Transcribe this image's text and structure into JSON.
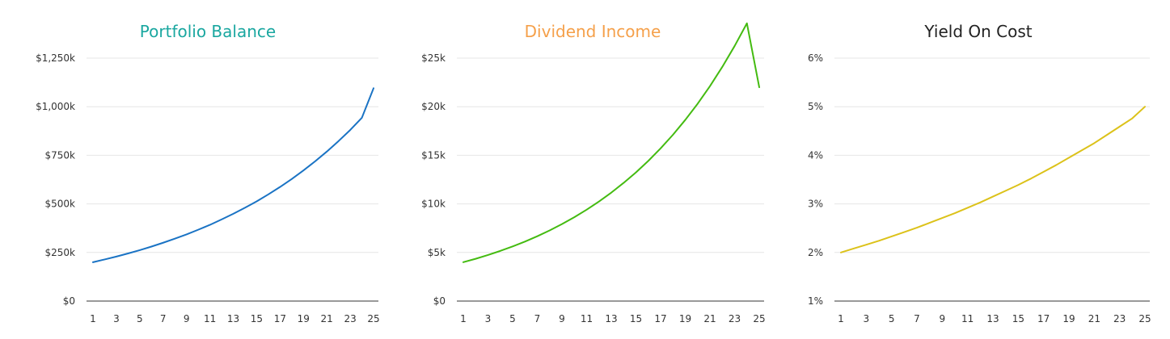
{
  "chart_data": [
    {
      "type": "line",
      "title": "Portfolio Balance",
      "title_color": "#1aa7a0",
      "line_color": "#1a73c4",
      "x": [
        1,
        2,
        3,
        4,
        5,
        6,
        7,
        8,
        9,
        10,
        11,
        12,
        13,
        14,
        15,
        16,
        17,
        18,
        19,
        20,
        21,
        22,
        23,
        24,
        25
      ],
      "y": [
        200000,
        214100,
        229000,
        245100,
        262000,
        280300,
        300000,
        321000,
        343000,
        367000,
        392000,
        420000,
        449000,
        480000,
        513000,
        549000,
        587000,
        628000,
        672000,
        719000,
        769000,
        823000,
        880000,
        943000,
        1095000
      ],
      "xticks": [
        1,
        3,
        5,
        7,
        9,
        11,
        13,
        15,
        17,
        19,
        21,
        23,
        25
      ],
      "yticks": [
        0,
        250000,
        500000,
        750000,
        1000000,
        1250000
      ],
      "ytick_labels": [
        "$0",
        "$250k",
        "$500k",
        "$750k",
        "$1,000k",
        "$1,250k"
      ],
      "ylim": [
        0,
        1250000
      ],
      "xlim": [
        1,
        25
      ],
      "grid": true
    },
    {
      "type": "line",
      "title": "Dividend Income",
      "title_color": "#f5a04a",
      "line_color": "#44bb11",
      "x": [
        1,
        2,
        3,
        4,
        5,
        6,
        7,
        8,
        9,
        10,
        11,
        12,
        13,
        14,
        15,
        16,
        17,
        18,
        19,
        20,
        21,
        22,
        23,
        24,
        25
      ],
      "y": [
        4000,
        4350,
        4740,
        5160,
        5620,
        6120,
        6670,
        7270,
        7920,
        8630,
        9400,
        10240,
        11160,
        12160,
        13240,
        14420,
        15710,
        17110,
        18640,
        20300,
        22110,
        24090,
        26240,
        28580,
        22000
      ],
      "xticks": [
        1,
        3,
        5,
        7,
        9,
        11,
        13,
        15,
        17,
        19,
        21,
        23,
        25
      ],
      "yticks": [
        0,
        5000,
        10000,
        15000,
        20000,
        25000
      ],
      "ytick_labels": [
        "$0",
        "$5k",
        "$10k",
        "$15k",
        "$20k",
        "$25k"
      ],
      "ylim": [
        0,
        25000
      ],
      "xlim": [
        1,
        25
      ],
      "grid": true
    },
    {
      "type": "line",
      "title": "Yield On Cost",
      "title_color": "#222222",
      "line_color": "#dcc21a",
      "x": [
        1,
        2,
        3,
        4,
        5,
        6,
        7,
        8,
        9,
        10,
        11,
        12,
        13,
        14,
        15,
        16,
        17,
        18,
        19,
        20,
        21,
        22,
        23,
        24,
        25
      ],
      "y": [
        2.0,
        2.08,
        2.16,
        2.24,
        2.33,
        2.42,
        2.51,
        2.61,
        2.71,
        2.81,
        2.92,
        3.03,
        3.15,
        3.27,
        3.39,
        3.52,
        3.66,
        3.8,
        3.95,
        4.1,
        4.25,
        4.42,
        4.59,
        4.76,
        5.0
      ],
      "xticks": [
        1,
        3,
        5,
        7,
        9,
        11,
        13,
        15,
        17,
        19,
        21,
        23,
        25
      ],
      "yticks": [
        1,
        2,
        3,
        4,
        5,
        6
      ],
      "ytick_labels": [
        "1%",
        "2%",
        "3%",
        "4%",
        "5%",
        "6%"
      ],
      "ylim": [
        1,
        6
      ],
      "xlim": [
        1,
        25
      ],
      "grid": true
    }
  ]
}
